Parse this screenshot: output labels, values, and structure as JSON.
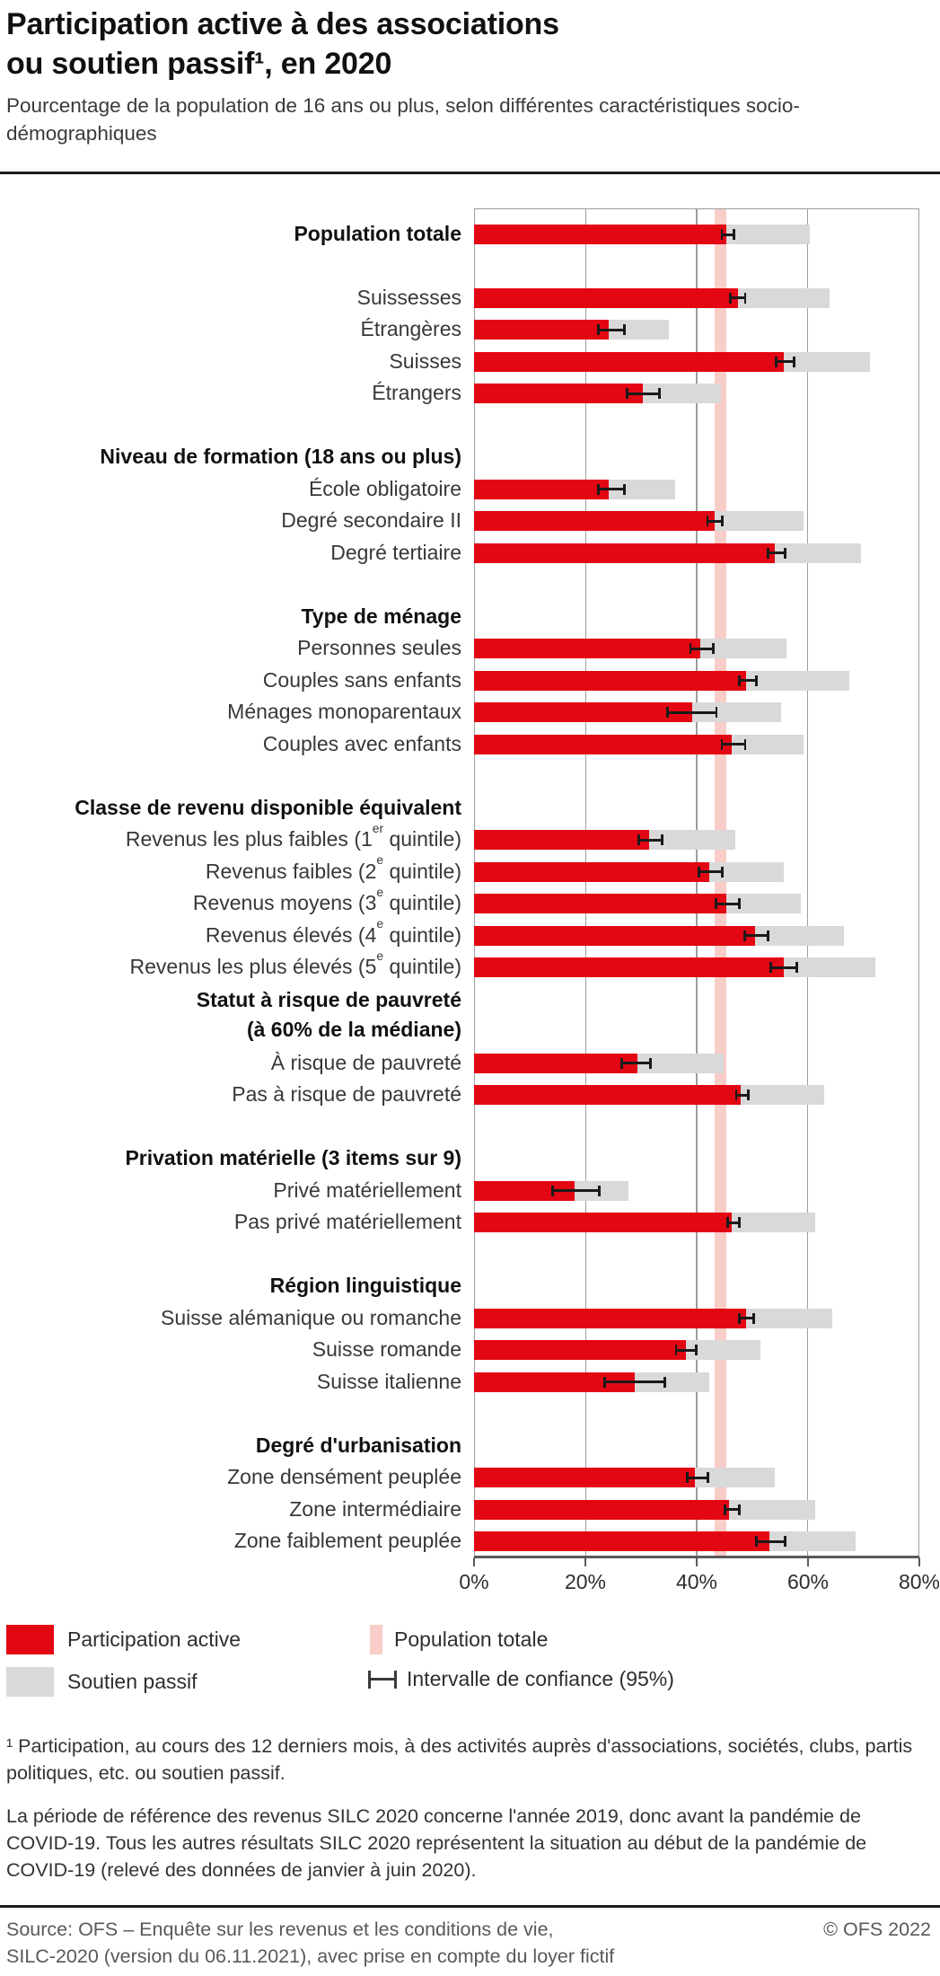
{
  "title": {
    "line1": "Participation active à des associations",
    "line2": "ou soutien passif¹, en 2020"
  },
  "subtitle": "Pourcentage de la population de 16 ans ou plus, selon différentes caractéristiques socio-démographiques",
  "legend": {
    "active": "Participation active",
    "passive": "Soutien passif",
    "population": "Population totale",
    "ci": "Intervalle de confiance (95%)"
  },
  "footnote1": "¹ Participation, au cours des 12 derniers mois, à des activités auprès d'associations, sociétés, clubs, partis politiques, etc. ou soutien passif.",
  "note": "La période de référence des revenus SILC 2020 concerne l'année 2019, donc avant la pandémie de COVID-19. Tous les autres résultats SILC 2020 représentent la situation au début de la pandémie de COVID-19 (relevé des données de janvier à juin 2020).",
  "source": {
    "line1": "Source: OFS – Enquête sur les revenus et les conditions de vie,",
    "line2": "SILC-2020 (version du 06.11.2021), avec prise en compte du loyer fictif",
    "copyright": "© OFS 2022"
  },
  "colors": {
    "active": "#e30613",
    "passive": "#d9d9d9",
    "population_band": "#f9cdc8",
    "error_bar": "#1a1a1a"
  },
  "chart_data": {
    "type": "bar",
    "orientation": "horizontal",
    "unit": "%",
    "xlim": [
      0,
      80
    ],
    "x_ticks": [
      "0%",
      "20%",
      "40%",
      "60%",
      "80%"
    ],
    "grid": "vertical, every 20%",
    "population_band": {
      "from": 43.2,
      "to": 45.3,
      "meaning": "Population totale (intervalle de confiance)"
    },
    "series_legend": [
      "Participation active",
      "Soutien passif (cumulé jusqu'au total)"
    ],
    "rows": [
      {
        "slot": 0,
        "label": "Population totale",
        "bold": true,
        "active": 44,
        "total": 58.5,
        "ci": [
          43,
          45.5
        ]
      },
      {
        "slot": 2,
        "label": "Suissesses",
        "active": 46,
        "total": 62,
        "ci": [
          44.5,
          47.5
        ]
      },
      {
        "slot": 3,
        "label": "Étrangères",
        "active": 23.5,
        "total": 34,
        "ci": [
          21.5,
          26.5
        ]
      },
      {
        "slot": 4,
        "label": "Suisses",
        "active": 54,
        "total": 69,
        "ci": [
          52.5,
          56
        ]
      },
      {
        "slot": 5,
        "label": "Étrangers",
        "active": 29.5,
        "total": 43,
        "ci": [
          26.5,
          32.5
        ]
      },
      {
        "slot": 7,
        "header": "Niveau de formation (18 ans ou plus)"
      },
      {
        "slot": 8,
        "label": "École obligatoire",
        "active": 23.5,
        "total": 35,
        "ci": [
          21.5,
          26.5
        ]
      },
      {
        "slot": 9,
        "label": "Degré secondaire II",
        "active": 42,
        "total": 57.5,
        "ci": [
          40.5,
          43.5
        ]
      },
      {
        "slot": 10,
        "label": "Degré tertiaire",
        "active": 52.5,
        "total": 67.5,
        "ci": [
          51,
          54.5
        ]
      },
      {
        "slot": 12,
        "header": "Type de ménage"
      },
      {
        "slot": 13,
        "label": "Personnes seules",
        "active": 39.5,
        "total": 54.5,
        "ci": [
          37.5,
          42
        ]
      },
      {
        "slot": 14,
        "label": "Couples sans enfants",
        "active": 47.5,
        "total": 65.5,
        "ci": [
          46,
          49.5
        ]
      },
      {
        "slot": 15,
        "label": "Ménages monoparentaux",
        "active": 38,
        "total": 53.5,
        "ci": [
          33.5,
          42.5
        ]
      },
      {
        "slot": 16,
        "label": "Couples avec enfants",
        "active": 45,
        "total": 57.5,
        "ci": [
          43,
          47.5
        ]
      },
      {
        "slot": 18,
        "header": "Classe de revenu disponible équivalent"
      },
      {
        "slot": 19,
        "label": "Revenus les plus faibles (1|er| quintile)",
        "active": 30.5,
        "total": 45.5,
        "ci": [
          28.5,
          33
        ]
      },
      {
        "slot": 20,
        "label": "Revenus faibles (2|e| quintile)",
        "active": 41,
        "total": 54,
        "ci": [
          39,
          43.5
        ]
      },
      {
        "slot": 21,
        "label": "Revenus moyens (3|e| quintile)",
        "active": 44,
        "total": 57,
        "ci": [
          42,
          46.5
        ]
      },
      {
        "slot": 22,
        "label": "Revenus élevés (4|e| quintile)",
        "active": 49,
        "total": 64.5,
        "ci": [
          47,
          51.5
        ]
      },
      {
        "slot": 23,
        "label": "Revenus les plus élevés (5|e| quintile)",
        "active": 54,
        "total": 70,
        "ci": [
          51.5,
          56.5
        ]
      },
      {
        "slot": 24,
        "header_lines": [
          "Statut à risque de pauvreté",
          "(à 60% de la médiane)"
        ]
      },
      {
        "slot": 26,
        "label": "À risque de pauvreté",
        "active": 28.5,
        "total": 43.5,
        "ci": [
          25.5,
          31
        ]
      },
      {
        "slot": 27,
        "label": "Pas à risque de pauvreté",
        "active": 46.5,
        "total": 61,
        "ci": [
          45.5,
          48
        ]
      },
      {
        "slot": 29,
        "header": "Privation matérielle (3 items sur 9)"
      },
      {
        "slot": 30,
        "label": "Privé matériellement",
        "active": 17.5,
        "total": 27,
        "ci": [
          13.5,
          22
        ]
      },
      {
        "slot": 31,
        "label": "Pas privé matériellement",
        "active": 45,
        "total": 59.5,
        "ci": [
          44,
          46.5
        ]
      },
      {
        "slot": 33,
        "header": "Région linguistique"
      },
      {
        "slot": 34,
        "label": "Suisse alémanique ou romanche",
        "active": 47.5,
        "total": 62.5,
        "ci": [
          46,
          49
        ]
      },
      {
        "slot": 35,
        "label": "Suisse romande",
        "active": 37,
        "total": 50,
        "ci": [
          35,
          39
        ]
      },
      {
        "slot": 36,
        "label": "Suisse italienne",
        "active": 28,
        "total": 41,
        "ci": [
          22.5,
          33.5
        ]
      },
      {
        "slot": 38,
        "header": "Degré d'urbanisation"
      },
      {
        "slot": 39,
        "label": "Zone densément peuplée",
        "active": 38.5,
        "total": 52.5,
        "ci": [
          37,
          41
        ]
      },
      {
        "slot": 40,
        "label": "Zone intermédiaire",
        "active": 44.5,
        "total": 59.5,
        "ci": [
          43.5,
          46.5
        ]
      },
      {
        "slot": 41,
        "label": "Zone faiblement peuplée",
        "active": 51.5,
        "total": 66.5,
        "ci": [
          49,
          54.5
        ]
      }
    ]
  }
}
